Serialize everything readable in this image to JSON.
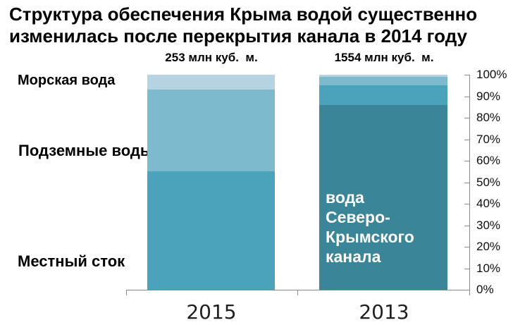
{
  "title": "Структура обеспечения Крыма водой существенно\nизменилась после перекрытия канала в 2014 году",
  "labels": {
    "canal_overlay": "вода\nСеверо-\nКрымского\nканала"
  },
  "chart_data": {
    "type": "bar",
    "stacked": true,
    "percent_stacked": true,
    "title": "Структура обеспечения Крыма водой существенно изменилась после перекрытия канала в 2014 году",
    "categories": [
      "2015",
      "2013"
    ],
    "bar_totals": [
      "253 млн куб.  м.",
      "1554 млн куб.  м."
    ],
    "series": [
      {
        "name": "Морская вода",
        "color": "#b5d3e0",
        "values": [
          7,
          1
        ]
      },
      {
        "name": "Подземные воды",
        "color": "#7dbace",
        "values": [
          38,
          4
        ]
      },
      {
        "name": "Местный сток",
        "color": "#4aa3ba",
        "values": [
          55,
          9
        ]
      },
      {
        "name": "вода Северо-Крымского канала",
        "color": "#3a8598",
        "values": [
          0,
          86
        ]
      }
    ],
    "y_axis": {
      "position": "right",
      "min": 0,
      "max": 100,
      "step": 10,
      "ticks": [
        "0%",
        "10%",
        "20%",
        "30%",
        "40%",
        "50%",
        "60%",
        "70%",
        "80%",
        "90%",
        "100%"
      ]
    },
    "xlabel": "",
    "ylabel": "",
    "grid": false,
    "legend_position": "none"
  }
}
